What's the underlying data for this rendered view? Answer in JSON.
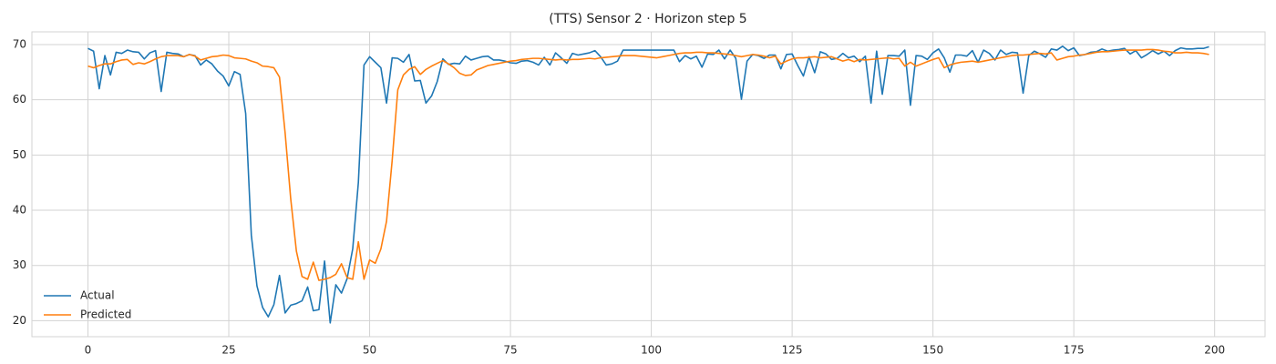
{
  "chart_data": {
    "type": "line",
    "title": "(TTS) Sensor 2 · Horizon step 5",
    "x": [
      0,
      1,
      2,
      3,
      4,
      5,
      6,
      7,
      8,
      9,
      10,
      11,
      12,
      13,
      14,
      15,
      16,
      17,
      18,
      19,
      20,
      21,
      22,
      23,
      24,
      25,
      26,
      27,
      28,
      29,
      30,
      31,
      32,
      33,
      34,
      35,
      36,
      37,
      38,
      39,
      40,
      41,
      42,
      43,
      44,
      45,
      46,
      47,
      48,
      49,
      50,
      51,
      52,
      53,
      54,
      55,
      56,
      57,
      58,
      59,
      60,
      61,
      62,
      63,
      64,
      65,
      66,
      67,
      68,
      69,
      70,
      71,
      72,
      73,
      74,
      75,
      76,
      77,
      78,
      79,
      80,
      81,
      82,
      83,
      84,
      85,
      86,
      87,
      88,
      89,
      90,
      91,
      92,
      93,
      94,
      95,
      96,
      97,
      98,
      99,
      100,
      101,
      102,
      103,
      104,
      105,
      106,
      107,
      108,
      109,
      110,
      111,
      112,
      113,
      114,
      115,
      116,
      117,
      118,
      119,
      120,
      121,
      122,
      123,
      124,
      125,
      126,
      127,
      128,
      129,
      130,
      131,
      132,
      133,
      134,
      135,
      136,
      137,
      138,
      139,
      140,
      141,
      142,
      143,
      144,
      145,
      146,
      147,
      148,
      149,
      150,
      151,
      152,
      153,
      154,
      155,
      156,
      157,
      158,
      159,
      160,
      161,
      162,
      163,
      164,
      165,
      166,
      167,
      168,
      169,
      170,
      171,
      172,
      173,
      174,
      175,
      176,
      177,
      178,
      179,
      180,
      181,
      182,
      183,
      184,
      185,
      186,
      187,
      188,
      189,
      190,
      191,
      192,
      193,
      194,
      195,
      196,
      197,
      198,
      199
    ],
    "series": [
      {
        "name": "Actual",
        "color": "#1f77b4",
        "values": [
          69.3,
          68.8,
          62,
          68,
          64.5,
          68.6,
          68.4,
          69,
          68.7,
          68.6,
          67.4,
          68.5,
          68.9,
          61.5,
          68.6,
          68.4,
          68.3,
          67.8,
          68.2,
          68,
          66.3,
          67.2,
          66.5,
          65.2,
          64.3,
          62.5,
          65.1,
          64.6,
          57.5,
          35.5,
          26.3,
          22.4,
          20.7,
          22.9,
          28.2,
          21.4,
          22.8,
          23.1,
          23.6,
          26.1,
          21.8,
          22,
          30.8,
          19.6,
          26.5,
          25,
          27.6,
          33,
          45,
          66.3,
          67.8,
          66.8,
          65.8,
          59.4,
          67.6,
          67.5,
          66.8,
          68.2,
          63.4,
          63.5,
          59.4,
          60.7,
          63.3,
          67.4,
          66.4,
          66.6,
          66.5,
          67.9,
          67.2,
          67.5,
          67.8,
          67.9,
          67.2,
          67.2,
          67,
          66.7,
          66.6,
          67,
          67.1,
          66.8,
          66.3,
          67.7,
          66.3,
          68.5,
          67.6,
          66.6,
          68.4,
          68.1,
          68.3,
          68.5,
          68.9,
          67.8,
          66.3,
          66.5,
          67,
          69,
          69,
          69,
          69,
          69,
          69,
          69,
          69,
          69,
          69,
          66.9,
          68,
          67.4,
          67.9,
          65.9,
          68.3,
          68.2,
          69,
          67.4,
          69,
          67.5,
          60.1,
          67,
          68.2,
          68,
          67.5,
          68.1,
          68.1,
          65.6,
          68.2,
          68.3,
          66.2,
          64.3,
          67.8,
          64.9,
          68.7,
          68.3,
          67.3,
          67.5,
          68.4,
          67.6,
          67.9,
          66.9,
          67.9,
          59.4,
          68.8,
          61,
          68,
          68,
          67.9,
          69,
          59,
          68,
          67.9,
          67.3,
          68.5,
          69.2,
          67.6,
          65,
          68.1,
          68.1,
          67.9,
          68.9,
          66.8,
          69,
          68.4,
          67.2,
          69,
          68.2,
          68.6,
          68.5,
          61.2,
          68,
          68.8,
          68.3,
          67.7,
          69.2,
          69,
          69.7,
          68.9,
          69.4,
          68,
          68.2,
          68.6,
          68.7,
          69.2,
          68.8,
          69,
          69.1,
          69.3,
          68.3,
          68.9,
          67.6,
          68.2,
          68.9,
          68.3,
          68.8,
          68,
          68.9,
          69.4,
          69.2,
          69.2,
          69.3,
          69.3,
          69.6
        ]
      },
      {
        "name": "Predicted",
        "color": "#ff7f0e",
        "values": [
          66.1,
          65.8,
          66.2,
          66.5,
          66.5,
          66.9,
          67.2,
          67.3,
          66.4,
          66.7,
          66.5,
          66.9,
          67.4,
          67.8,
          68,
          68,
          68,
          67.8,
          68.2,
          67.9,
          67.2,
          67.5,
          67.8,
          67.9,
          68.1,
          68,
          67.6,
          67.5,
          67.4,
          67,
          66.7,
          66.1,
          66,
          65.8,
          64.1,
          54,
          42,
          32.6,
          28,
          27.5,
          30.6,
          27.3,
          27.5,
          27.8,
          28.4,
          30.3,
          27.8,
          27.5,
          34.3,
          27.5,
          31,
          30.4,
          33,
          38,
          49,
          61.8,
          64.5,
          65.5,
          66,
          64.6,
          65.5,
          66.1,
          66.6,
          67.1,
          66.5,
          65.8,
          64.8,
          64.4,
          64.5,
          65.4,
          65.8,
          66.2,
          66.4,
          66.6,
          66.8,
          67,
          67.1,
          67.3,
          67.4,
          67.5,
          67.5,
          67.4,
          67.3,
          67.2,
          67.3,
          67.2,
          67.3,
          67.3,
          67.4,
          67.5,
          67.4,
          67.6,
          67.7,
          67.8,
          67.9,
          68,
          68,
          68,
          67.9,
          67.8,
          67.7,
          67.6,
          67.8,
          68,
          68.2,
          68.4,
          68.5,
          68.5,
          68.6,
          68.6,
          68.5,
          68.5,
          68.4,
          68.3,
          68.2,
          68,
          67.8,
          68,
          68.2,
          68.1,
          67.9,
          67.6,
          67.9,
          66.5,
          67,
          67.4,
          67.6,
          67.6,
          67.7,
          67.8,
          67.6,
          67.7,
          67.8,
          67.4,
          67,
          67.3,
          66.9,
          67.3,
          67.2,
          67.3,
          67.4,
          67.5,
          67.6,
          67.4,
          67.5,
          66.1,
          66.8,
          66.1,
          66.5,
          66.9,
          67.3,
          67.6,
          65.8,
          66.3,
          66.6,
          66.8,
          66.9,
          67,
          66.8,
          67,
          67.2,
          67.4,
          67.6,
          67.8,
          68,
          68.1,
          68.1,
          68.2,
          68.3,
          68.4,
          68.3,
          68.5,
          67.2,
          67.5,
          67.8,
          67.9,
          68.1,
          68.2,
          68.4,
          68.6,
          68.7,
          68.7,
          68.8,
          68.9,
          69,
          69,
          69,
          69,
          69.1,
          69.1,
          69,
          68.8,
          68.7,
          68.5,
          68.5,
          68.6,
          68.5,
          68.5,
          68.4,
          68.2
        ]
      }
    ],
    "xlim": [
      -9.95,
      208.95
    ],
    "ylim": [
      17.1,
      72.3
    ],
    "xticks": [
      0,
      25,
      50,
      75,
      100,
      125,
      150,
      175,
      200
    ],
    "yticks": [
      20,
      30,
      40,
      50,
      60,
      70
    ],
    "grid": true,
    "legend": "lower left"
  }
}
